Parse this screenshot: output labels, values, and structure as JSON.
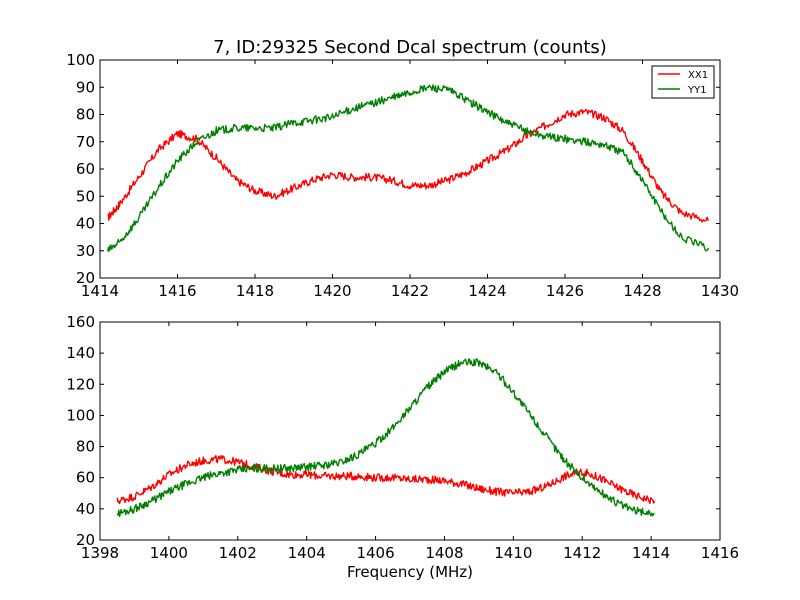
{
  "colors": {
    "XX1": "#ff0000",
    "YY1": "#008000"
  },
  "chart_data": [
    {
      "type": "line",
      "title": "7, ID:29325 Second Dcal spectrum (counts)",
      "xlabel": "",
      "ylabel": "",
      "xlim": [
        1414,
        1430
      ],
      "ylim": [
        20,
        100
      ],
      "xticks": [
        1414,
        1416,
        1418,
        1420,
        1422,
        1424,
        1426,
        1428,
        1430
      ],
      "yticks": [
        20,
        30,
        40,
        50,
        60,
        70,
        80,
        90,
        100
      ],
      "grid": false,
      "legend": {
        "placement": "top-right",
        "entries": [
          "XX1",
          "YY1"
        ]
      },
      "series": [
        {
          "name": "XX1",
          "color": "#ff0000",
          "x": [
            1414.2,
            1414.5,
            1415.0,
            1415.5,
            1416.0,
            1416.5,
            1417.0,
            1417.5,
            1418.0,
            1418.5,
            1419.0,
            1419.5,
            1420.0,
            1420.5,
            1421.0,
            1421.5,
            1422.0,
            1422.5,
            1423.0,
            1423.5,
            1424.0,
            1424.5,
            1425.0,
            1425.5,
            1426.0,
            1426.5,
            1427.0,
            1427.5,
            1428.0,
            1428.5,
            1429.0,
            1429.7
          ],
          "values": [
            42,
            47,
            57,
            67,
            73,
            71,
            64,
            56,
            52,
            50,
            53,
            56,
            58,
            57,
            57,
            56,
            54,
            54,
            56,
            59,
            63,
            67,
            72,
            76,
            80,
            81,
            79,
            74,
            63,
            51,
            44,
            41
          ]
        },
        {
          "name": "YY1",
          "color": "#008000",
          "x": [
            1414.2,
            1414.5,
            1415.0,
            1415.5,
            1416.0,
            1416.5,
            1417.0,
            1417.5,
            1418.0,
            1418.5,
            1419.0,
            1419.5,
            1420.0,
            1420.5,
            1421.0,
            1421.5,
            1422.0,
            1422.5,
            1423.0,
            1423.5,
            1424.0,
            1424.5,
            1425.0,
            1425.5,
            1426.0,
            1426.5,
            1427.0,
            1427.5,
            1428.0,
            1428.5,
            1429.0,
            1429.7
          ],
          "values": [
            30,
            33,
            42,
            53,
            63,
            70,
            74,
            75,
            75,
            75,
            77,
            78,
            79,
            82,
            84,
            86,
            88,
            90,
            89,
            85,
            81,
            77,
            74,
            72,
            71,
            70,
            69,
            66,
            56,
            44,
            35,
            31
          ]
        }
      ]
    },
    {
      "type": "line",
      "title": "",
      "xlabel": "Frequency (MHz)",
      "ylabel": "",
      "xlim": [
        1398,
        1416
      ],
      "ylim": [
        20,
        160
      ],
      "xticks": [
        1398,
        1400,
        1402,
        1404,
        1406,
        1408,
        1410,
        1412,
        1414,
        1416
      ],
      "yticks": [
        20,
        40,
        60,
        80,
        100,
        120,
        140,
        160
      ],
      "grid": false,
      "legend": null,
      "series": [
        {
          "color": "#ff0000",
          "x": [
            1398.5,
            1399.0,
            1399.5,
            1400.0,
            1400.5,
            1401.0,
            1401.5,
            1402.0,
            1402.5,
            1403.0,
            1403.5,
            1404.0,
            1404.5,
            1405.0,
            1405.5,
            1406.0,
            1406.5,
            1407.0,
            1407.5,
            1408.0,
            1408.5,
            1409.0,
            1409.5,
            1410.0,
            1410.5,
            1411.0,
            1411.5,
            1412.0,
            1412.5,
            1413.0,
            1413.5,
            1414.1
          ],
          "values": [
            45,
            48,
            54,
            62,
            68,
            71,
            72,
            70,
            67,
            64,
            62,
            62,
            61,
            61,
            61,
            60,
            60,
            59,
            59,
            58,
            56,
            53,
            51,
            50,
            51,
            55,
            61,
            64,
            60,
            54,
            49,
            45
          ]
        },
        {
          "color": "#008000",
          "x": [
            1398.5,
            1399.0,
            1399.5,
            1400.0,
            1400.5,
            1401.0,
            1401.5,
            1402.0,
            1402.5,
            1403.0,
            1403.5,
            1404.0,
            1404.5,
            1405.0,
            1405.5,
            1406.0,
            1406.5,
            1407.0,
            1407.5,
            1408.0,
            1408.5,
            1409.0,
            1409.5,
            1410.0,
            1410.5,
            1411.0,
            1411.5,
            1412.0,
            1412.5,
            1413.0,
            1413.5,
            1414.1
          ],
          "values": [
            37,
            40,
            45,
            51,
            56,
            60,
            63,
            65,
            66,
            66,
            66,
            67,
            68,
            70,
            75,
            82,
            92,
            105,
            118,
            128,
            134,
            134,
            128,
            115,
            100,
            85,
            71,
            60,
            51,
            44,
            39,
            37
          ]
        }
      ]
    }
  ]
}
